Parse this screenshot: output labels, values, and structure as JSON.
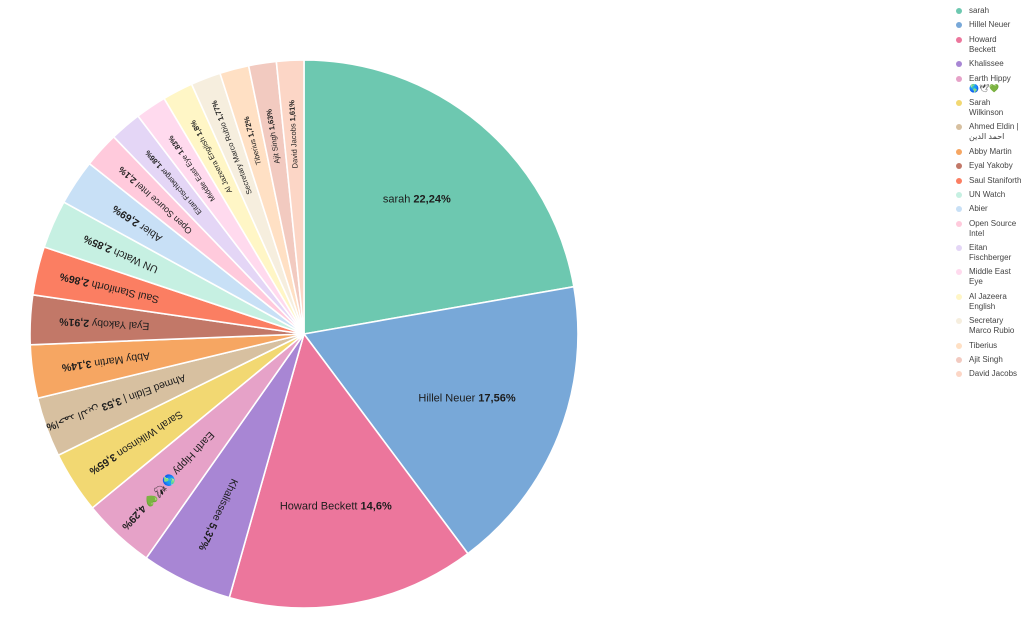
{
  "chart_data": {
    "type": "pie",
    "title": "",
    "legend_position": "right",
    "slices": [
      {
        "name": "sarah",
        "label": "sarah",
        "value": "22,24%",
        "pct": 22.24,
        "color": "#6dc8b0"
      },
      {
        "name": "Hillel Neuer",
        "label": "Hillel Neuer",
        "value": "17,56%",
        "pct": 17.56,
        "color": "#78a8d8"
      },
      {
        "name": "Howard Beckett",
        "label": "Howard Beckett",
        "value": "14,6%",
        "pct": 14.6,
        "color": "#ec769c"
      },
      {
        "name": "Khalissee",
        "label": "Khalissee",
        "value": "5,37%",
        "pct": 5.37,
        "color": "#a886d4"
      },
      {
        "name": "Earth Hippy 🌎🕊💚",
        "label": "Earth Hippy 🌎🕊💚",
        "value": "4,29%",
        "pct": 4.29,
        "color": "#e6a2c8"
      },
      {
        "name": "Sarah Wilkinson",
        "label": "Sarah Wilkinson",
        "value": "3,65%",
        "pct": 3.65,
        "color": "#f2d872"
      },
      {
        "name": "Ahmed Eldin | احمد الدين",
        "label": "Ahmed Eldin | احمد الدين",
        "value": "3,53%",
        "pct": 3.53,
        "color": "#d7c0a0"
      },
      {
        "name": "Abby Martin",
        "label": "Abby Martin",
        "value": "3,14%",
        "pct": 3.14,
        "color": "#f6a662"
      },
      {
        "name": "Eyal Yakoby",
        "label": "Eyal Yakoby",
        "value": "2,91%",
        "pct": 2.91,
        "color": "#c27868"
      },
      {
        "name": "Saul Staniforth",
        "label": "Saul Staniforth",
        "value": "2,86%",
        "pct": 2.86,
        "color": "#fb7e62"
      },
      {
        "name": "UN Watch",
        "label": "UN Watch",
        "value": "2,85%",
        "pct": 2.85,
        "color": "#c6f0e2"
      },
      {
        "name": "Abier",
        "label": "Abier",
        "value": "2,69%",
        "pct": 2.69,
        "color": "#c8e0f6"
      },
      {
        "name": "Open Source Intel",
        "label": "Open Source Intel",
        "value": "2,1%",
        "pct": 2.1,
        "color": "#ffcadc"
      },
      {
        "name": "Eitan Fischberger",
        "label": "Eitan Fischberger",
        "value": "1,86%",
        "pct": 1.86,
        "color": "#e4d6f6"
      },
      {
        "name": "Middle East Eye",
        "label": "Middle East Eye",
        "value": "1,83%",
        "pct": 1.83,
        "color": "#ffdaee"
      },
      {
        "name": "Al Jazeera English",
        "label": "Al Jazeera English",
        "value": "1,8%",
        "pct": 1.8,
        "color": "#fff6c6"
      },
      {
        "name": "Secretary Marco Rubio",
        "label": "Secretary Marco Rubio",
        "value": "1,77%",
        "pct": 1.77,
        "color": "#f6eede"
      },
      {
        "name": "Tiberius",
        "label": "Tiberius",
        "value": "1,72%",
        "pct": 1.72,
        "color": "#ffe0c4"
      },
      {
        "name": "Ajit Singh",
        "label": "Ajit Singh",
        "value": "1,63%",
        "pct": 1.63,
        "color": "#f2cac0"
      },
      {
        "name": "David Jacobs",
        "label": "David Jacobs",
        "value": "1,61%",
        "pct": 1.61,
        "color": "#fcd6c6"
      }
    ]
  }
}
